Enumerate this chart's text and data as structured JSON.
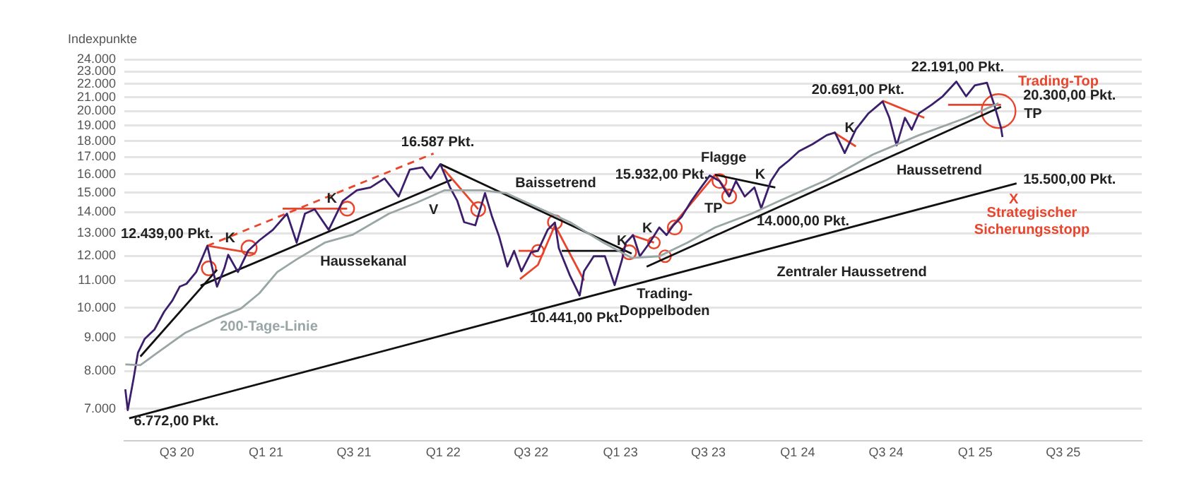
{
  "chart_data": {
    "type": "line",
    "ylabel": "Indexpunkte",
    "xlim": [
      "2020-03-15",
      "2025-12-10"
    ],
    "xticks": [
      {
        "value": "2020-07-01",
        "label": "Q3 20"
      },
      {
        "value": "2021-01-01",
        "label": "Q1 21"
      },
      {
        "value": "2021-07-01",
        "label": "Q3 21"
      },
      {
        "value": "2022-01-01",
        "label": "Q1 22"
      },
      {
        "value": "2022-07-01",
        "label": "Q3 22"
      },
      {
        "value": "2023-01-01",
        "label": "Q1 23"
      },
      {
        "value": "2023-07-01",
        "label": "Q3 23"
      },
      {
        "value": "2024-01-01",
        "label": "Q1 24"
      },
      {
        "value": "2024-07-01",
        "label": "Q3 24"
      },
      {
        "value": "2025-01-01",
        "label": "Q1 25"
      },
      {
        "value": "2025-07-01",
        "label": "Q3 25"
      }
    ],
    "ylim": [
      6250,
      24000
    ],
    "log": true,
    "yticks": [
      {
        "value": 7000,
        "label": "7.000"
      },
      {
        "value": 8000,
        "label": "8.000"
      },
      {
        "value": 9000,
        "label": "9.000"
      },
      {
        "value": 10000,
        "label": "10.000"
      },
      {
        "value": 11000,
        "label": "11.000"
      },
      {
        "value": 12000,
        "label": "12.000"
      },
      {
        "value": 13000,
        "label": "13.000"
      },
      {
        "value": 14000,
        "label": "14.000"
      },
      {
        "value": 15000,
        "label": "15.000"
      },
      {
        "value": 16000,
        "label": "16.000"
      },
      {
        "value": 17000,
        "label": "17.000"
      },
      {
        "value": 18000,
        "label": "18.000"
      },
      {
        "value": 19000,
        "label": "19.000"
      },
      {
        "value": 20000,
        "label": "20.000"
      },
      {
        "value": 21000,
        "label": "21.000"
      },
      {
        "value": 22000,
        "label": "22.000"
      },
      {
        "value": 23000,
        "label": "23.000"
      },
      {
        "value": 24000,
        "label": "24.000"
      }
    ],
    "grid": "y",
    "series": [
      {
        "color": "#9aa5a5",
        "x": [
          "2020-03-17",
          "2020-04-17",
          "2020-05-22",
          "2020-07-18",
          "2020-09-22",
          "2020-11-10",
          "2020-12-18",
          "2021-01-24",
          "2021-03-05",
          "2021-05-02",
          "2021-06-28",
          "2021-09-11",
          "2021-11-07",
          "2022-01-04",
          "2022-03-22",
          "2022-05-10",
          "2022-07-15",
          "2022-09-19",
          "2022-11-27",
          "2023-01-24",
          "2023-03-22",
          "2023-05-19",
          "2023-07-15",
          "2023-09-28",
          "2023-11-24",
          "2024-03-01",
          "2024-06-04",
          "2024-09-07",
          "2024-12-13",
          "2025-02-18"
        ],
        "values": [
          8190,
          8170,
          8530,
          9150,
          9640,
          9970,
          10520,
          11340,
          11860,
          12580,
          12930,
          13930,
          14480,
          15130,
          15130,
          14980,
          14230,
          13520,
          12580,
          11920,
          11990,
          12580,
          13270,
          13930,
          14570,
          15690,
          17160,
          18370,
          19530,
          20560
        ]
      },
      {
        "color": "#3b1f6b",
        "x": [
          "2020-03-17",
          "2020-03-22",
          "2020-04-03",
          "2020-04-12",
          "2020-04-26",
          "2020-05-16",
          "2020-06-05",
          "2020-06-22",
          "2020-07-07",
          "2020-07-21",
          "2020-08-10",
          "2020-09-02",
          "2020-09-14",
          "2020-09-22",
          "2020-10-07",
          "2020-10-15",
          "2020-11-04",
          "2020-11-25",
          "2020-12-18",
          "2021-01-15",
          "2021-02-13",
          "2021-03-05",
          "2021-03-22",
          "2021-04-11",
          "2021-05-10",
          "2021-06-08",
          "2021-07-07",
          "2021-08-04",
          "2021-09-02",
          "2021-10-01",
          "2021-10-24",
          "2021-11-19",
          "2021-12-06",
          "2021-12-26",
          "2022-01-15",
          "2022-01-30",
          "2022-02-13",
          "2022-03-08",
          "2022-03-28",
          "2022-04-11",
          "2022-04-26",
          "2022-05-13",
          "2022-05-27",
          "2022-06-11",
          "2022-07-01",
          "2022-07-15",
          "2022-08-04",
          "2022-08-19",
          "2022-08-27",
          "2022-09-19",
          "2022-10-09",
          "2022-10-18",
          "2022-11-07",
          "2022-11-30",
          "2022-12-20",
          "2023-01-04",
          "2023-01-12",
          "2023-01-27",
          "2023-02-10",
          "2023-03-02",
          "2023-03-22",
          "2023-04-06",
          "2023-04-20",
          "2023-05-07",
          "2023-05-27",
          "2023-06-16",
          "2023-07-04",
          "2023-07-24",
          "2023-08-13",
          "2023-08-27",
          "2023-09-14",
          "2023-10-04",
          "2023-10-18",
          "2023-11-07",
          "2023-11-24",
          "2023-12-14",
          "2024-01-04",
          "2024-02-01",
          "2024-03-01",
          "2024-03-18",
          "2024-04-07",
          "2024-04-30",
          "2024-05-26",
          "2024-06-24",
          "2024-07-08",
          "2024-07-23",
          "2024-08-09",
          "2024-08-23",
          "2024-09-07",
          "2024-10-03",
          "2024-10-26",
          "2024-11-23",
          "2024-12-13",
          "2024-12-31",
          "2025-01-25",
          "2025-02-09",
          "2025-02-23",
          "2025-02-26"
        ],
        "values": [
          7500,
          6970,
          7790,
          8530,
          8960,
          9260,
          9860,
          10260,
          10770,
          10880,
          11340,
          12439,
          11340,
          10770,
          11490,
          12050,
          11340,
          12220,
          12680,
          13160,
          13930,
          12580,
          13930,
          14150,
          13160,
          14570,
          15130,
          15280,
          15770,
          14800,
          16270,
          16400,
          15770,
          16587,
          15280,
          14570,
          13520,
          13370,
          14980,
          13820,
          12860,
          11560,
          12220,
          11370,
          12160,
          12220,
          13160,
          13500,
          12340,
          11200,
          10441,
          11370,
          11990,
          11990,
          10830,
          11820,
          12570,
          12920,
          11990,
          12570,
          13270,
          12920,
          13370,
          13770,
          14570,
          15280,
          15932,
          15630,
          14800,
          15630,
          14800,
          15280,
          14200,
          15630,
          16340,
          16800,
          17360,
          17800,
          18370,
          18540,
          17250,
          18750,
          19840,
          20691,
          19530,
          17720,
          19530,
          18730,
          19840,
          20450,
          21070,
          22191,
          21070,
          21900,
          22100,
          20450,
          18850,
          18250
        ]
      },
      {
        "color": "#111111",
        "x": [
          "2020-04-17",
          "2020-09-22"
        ],
        "values": [
          8420,
          11430
        ]
      },
      {
        "color": "#111111",
        "x": [
          "2020-08-19",
          "2022-01-18"
        ],
        "values": [
          10810,
          15700
        ]
      },
      {
        "color": "#111111",
        "x": [
          "2020-03-25",
          "2025-03-27"
        ],
        "values": [
          6772,
          15500
        ]
      },
      {
        "color": "#111111",
        "x": [
          "2021-12-26",
          "2023-01-24"
        ],
        "values": [
          16587,
          12100
        ]
      },
      {
        "color": "#111111",
        "x": [
          "2022-09-02",
          "2023-01-12"
        ],
        "values": [
          12220,
          12220
        ]
      },
      {
        "color": "#111111",
        "x": [
          "2023-02-24",
          "2025-02-23"
        ],
        "values": [
          11560,
          20300
        ]
      },
      {
        "color": "#111111",
        "x": [
          "2023-07-15",
          "2023-11-16"
        ],
        "values": [
          15980,
          15280
        ]
      },
      {
        "color": "#e8452c",
        "line_style": "dashed",
        "x": [
          "2020-09-02",
          "2021-12-12"
        ],
        "values": [
          12439,
          17220
        ]
      },
      {
        "color": "#e8452c",
        "x": [
          "2020-09-02",
          "2020-12-10"
        ],
        "values": [
          12439,
          12100
        ]
      },
      {
        "color": "#e8452c",
        "x": [
          "2021-02-04",
          "2021-06-17"
        ],
        "values": [
          14180,
          14180
        ]
      },
      {
        "color": "#e8452c",
        "x": [
          "2022-01-02",
          "2022-03-14"
        ],
        "values": [
          16300,
          14150
        ]
      },
      {
        "color": "#e8452c",
        "x": [
          "2022-06-08",
          "2022-07-15",
          "2022-08-19",
          "2022-10-18"
        ],
        "values": [
          11060,
          11630,
          13370,
          11010
        ]
      },
      {
        "color": "#e8452c",
        "x": [
          "2022-06-05",
          "2022-07-15"
        ],
        "values": [
          12220,
          12220
        ]
      },
      {
        "color": "#e8452c",
        "x": [
          "2023-01-24",
          "2023-03-11"
        ],
        "values": [
          12920,
          12580
        ]
      },
      {
        "color": "#e8452c",
        "x": [
          "2023-04-08",
          "2023-07-15",
          "2023-08-16"
        ],
        "values": [
          13080,
          15980,
          14830
        ]
      },
      {
        "color": "#e8452c",
        "x": [
          "2024-03-15",
          "2024-04-30"
        ],
        "values": [
          18560,
          17660
        ]
      },
      {
        "color": "#e8452c",
        "x": [
          "2024-06-24",
          "2024-09-18"
        ],
        "values": [
          20750,
          19530
        ]
      },
      {
        "color": "#e8452c",
        "x": [
          "2024-11-06",
          "2025-02-23"
        ],
        "values": [
          20450,
          20450
        ]
      },
      {
        "type": "bubble",
        "color": "#e8452c",
        "x": [
          "2020-09-05",
          "2020-11-27",
          "2021-06-17",
          "2022-03-14",
          "2022-07-15",
          "2022-08-19",
          "2023-01-19",
          "2023-03-11",
          "2023-04-03",
          "2023-04-23",
          "2023-07-24",
          "2023-08-13",
          "2025-02-18"
        ],
        "values": [
          11490,
          12340,
          14180,
          14150,
          12220,
          13520,
          12160,
          12580,
          11990,
          13270,
          15630,
          14800,
          20000
        ],
        "sizes": [
          0.17,
          0.2,
          0.17,
          0.17,
          0.12,
          0.17,
          0.17,
          0.12,
          0.12,
          0.17,
          0.17,
          0.17,
          1
        ]
      }
    ],
    "annotations": [
      "12.439,00 Pkt.",
      "K",
      "K",
      "16.587 Pkt.",
      "V",
      "Haussekanal",
      "200-Tage-Linie",
      "6.772,00 Pkt.",
      "Baissetrend",
      "10.441,00 Pkt.",
      "Trading-\nDoppelboden",
      "K",
      "K",
      "Flagge",
      "15.932,00 Pkt.",
      "TP",
      "K",
      "14.000,00 Pkt.",
      "Zentraler Haussetrend",
      "K",
      "20.691,00 Pkt.",
      "Haussetrend",
      "22.191,00 Pkt.",
      "Trading-Top",
      "20.300,00 Pkt.",
      "TP",
      "15.500,00 Pkt.",
      "X",
      "Strategischer\nSicherungsstopp"
    ]
  }
}
